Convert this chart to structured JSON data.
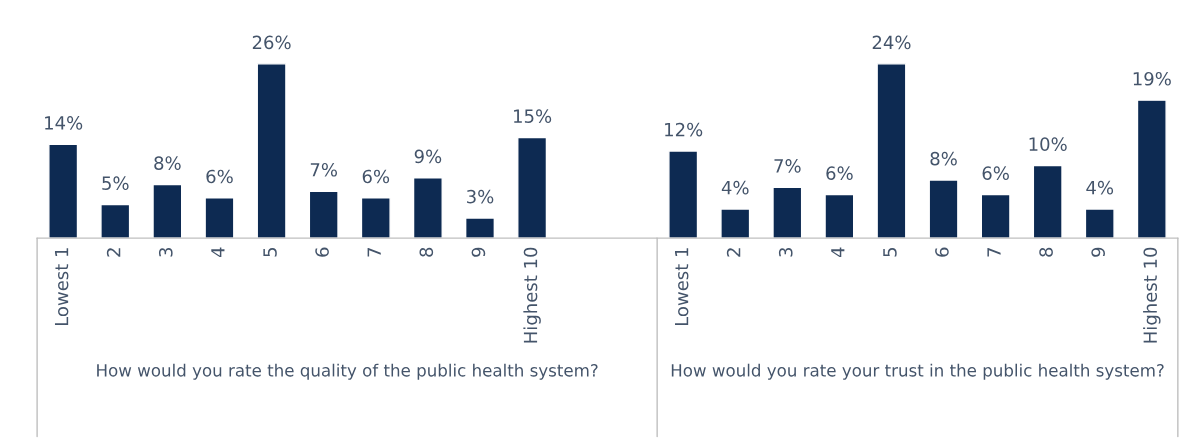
{
  "chart_data": [
    {
      "type": "bar",
      "xlabel": "How would you rate the quality of the public health system?",
      "categories": [
        "Lowest 1",
        "2",
        "3",
        "4",
        "5",
        "6",
        "7",
        "8",
        "9",
        "Highest 10"
      ],
      "color": "#0d2a52",
      "values": [
        14,
        5,
        8,
        6,
        26,
        7,
        6,
        9,
        3,
        15
      ],
      "value_labels": [
        "14%",
        "5%",
        "8%",
        "6%",
        "26%",
        "7%",
        "6%",
        "9%",
        "3%",
        "15%"
      ],
      "tick_labels": "x",
      "grid": false,
      "legend": false
    },
    {
      "type": "bar",
      "xlabel": "How would you rate your trust in the public health system?",
      "categories": [
        "Lowest 1",
        "2",
        "3",
        "4",
        "5",
        "6",
        "7",
        "8",
        "9",
        "Highest 10"
      ],
      "color": "#0d2a52",
      "values": [
        12,
        4,
        7,
        6,
        24,
        8,
        6,
        10,
        4,
        19
      ],
      "value_labels": [
        "12%",
        "4%",
        "7%",
        "6%",
        "24%",
        "8%",
        "6%",
        "10%",
        "4%",
        "19%"
      ],
      "tick_labels": "x",
      "grid": false,
      "legend": false
    }
  ]
}
